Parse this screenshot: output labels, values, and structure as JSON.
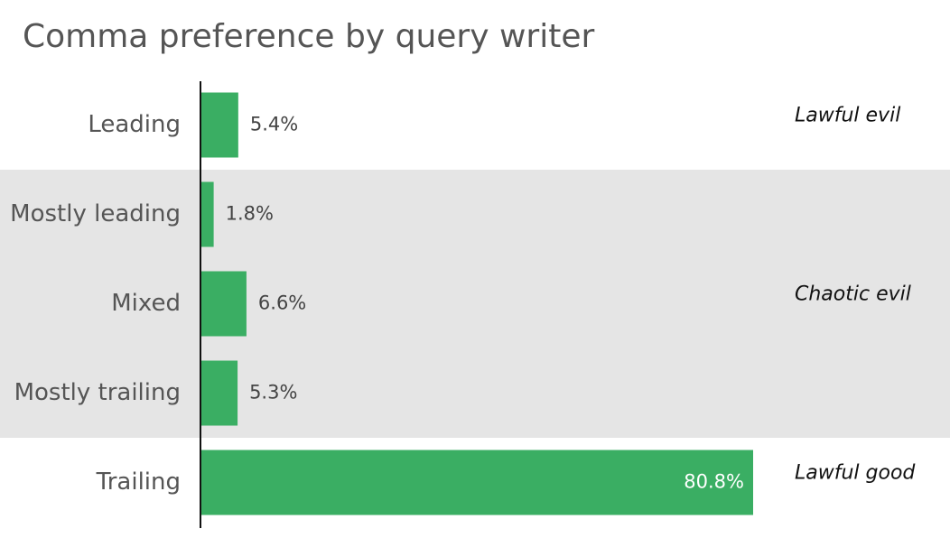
{
  "chart_data": {
    "type": "bar",
    "orientation": "horizontal",
    "title": "Comma preference by query writer",
    "categories": [
      "Leading",
      "Mostly leading",
      "Mixed",
      "Mostly trailing",
      "Trailing"
    ],
    "values": [
      5.4,
      1.8,
      6.6,
      5.3,
      80.8
    ],
    "value_labels": [
      "5.4%",
      "1.8%",
      "6.6%",
      "5.3%",
      "80.8%"
    ],
    "color": "#3aae63",
    "groups": [
      {
        "label": "Lawful evil",
        "categories": [
          "Leading"
        ]
      },
      {
        "label": "Chaotic evil",
        "categories": [
          "Mostly leading",
          "Mixed",
          "Mostly trailing"
        ],
        "shaded": true
      },
      {
        "label": "Lawful good",
        "categories": [
          "Trailing"
        ]
      }
    ]
  }
}
